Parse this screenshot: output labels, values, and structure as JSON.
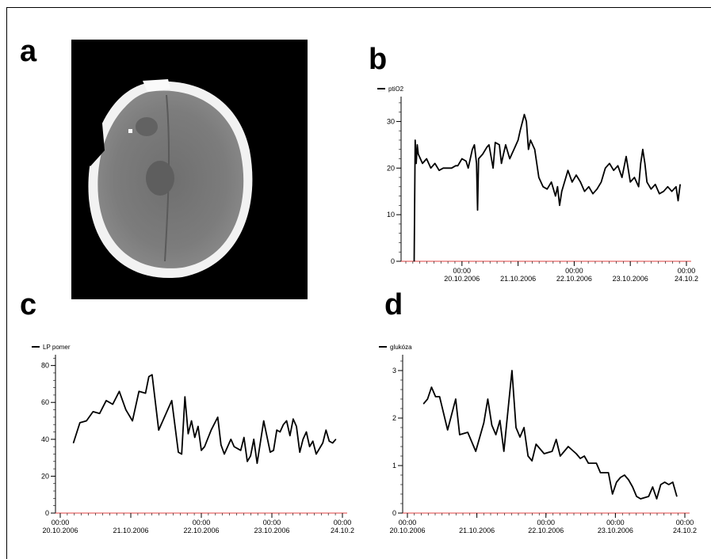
{
  "panels": [
    {
      "letter": "a"
    },
    {
      "letter": "b"
    },
    {
      "letter": "c"
    },
    {
      "letter": "d"
    }
  ],
  "colors": {
    "line": "#000000",
    "zero_line": "#e04040",
    "ct_background": "#000000",
    "skull": "#f4f4f4",
    "brain": "#767676"
  },
  "chart_data": [
    {
      "type": "line",
      "panel": "b",
      "series": [
        {
          "name": "ptiO2",
          "values": [
            [
              0.04,
              0
            ],
            [
              0.045,
              26
            ],
            [
              0.05,
              21
            ],
            [
              0.055,
              25
            ],
            [
              0.06,
              23
            ],
            [
              0.08,
              21
            ],
            [
              0.1,
              22
            ],
            [
              0.12,
              20
            ],
            [
              0.14,
              21
            ],
            [
              0.16,
              19.5
            ],
            [
              0.18,
              20
            ],
            [
              0.2,
              20
            ],
            [
              0.22,
              20
            ],
            [
              0.24,
              20.5
            ],
            [
              0.25,
              20.5
            ],
            [
              0.27,
              22
            ],
            [
              0.29,
              21.5
            ],
            [
              0.3,
              20
            ],
            [
              0.32,
              24
            ],
            [
              0.33,
              25
            ],
            [
              0.34,
              21
            ],
            [
              0.345,
              11
            ],
            [
              0.35,
              22
            ],
            [
              0.37,
              23
            ],
            [
              0.39,
              24.5
            ],
            [
              0.4,
              25
            ],
            [
              0.42,
              20
            ],
            [
              0.43,
              25.5
            ],
            [
              0.45,
              25
            ],
            [
              0.46,
              21
            ],
            [
              0.47,
              23
            ],
            [
              0.48,
              25
            ],
            [
              0.5,
              22
            ],
            [
              0.51,
              23
            ],
            [
              0.52,
              24
            ],
            [
              0.54,
              26
            ],
            [
              0.55,
              28
            ],
            [
              0.57,
              31.5
            ],
            [
              0.58,
              30
            ],
            [
              0.59,
              24
            ],
            [
              0.6,
              26
            ],
            [
              0.62,
              24
            ],
            [
              0.64,
              18
            ],
            [
              0.66,
              16
            ],
            [
              0.68,
              15.5
            ],
            [
              0.7,
              17
            ],
            [
              0.72,
              14
            ],
            [
              0.73,
              16
            ],
            [
              0.74,
              12
            ],
            [
              0.75,
              15
            ],
            [
              0.77,
              18
            ],
            [
              0.78,
              19.5
            ],
            [
              0.8,
              17
            ],
            [
              0.82,
              18.5
            ],
            [
              0.84,
              17
            ],
            [
              0.86,
              15
            ],
            [
              0.88,
              16
            ],
            [
              0.9,
              14.5
            ],
            [
              0.92,
              15.5
            ],
            [
              0.94,
              17
            ],
            [
              0.96,
              20
            ],
            [
              0.98,
              21
            ],
            [
              1.0,
              19.5
            ],
            [
              1.02,
              20.5
            ],
            [
              1.04,
              18
            ],
            [
              1.06,
              22.5
            ],
            [
              1.08,
              17
            ],
            [
              1.1,
              18
            ],
            [
              1.12,
              16
            ],
            [
              1.13,
              21
            ],
            [
              1.14,
              24
            ],
            [
              1.15,
              21
            ],
            [
              1.16,
              17
            ],
            [
              1.18,
              15.5
            ],
            [
              1.2,
              16.5
            ],
            [
              1.22,
              14.5
            ],
            [
              1.24,
              15
            ],
            [
              1.26,
              16
            ],
            [
              1.28,
              15
            ],
            [
              1.3,
              16
            ],
            [
              1.31,
              13
            ],
            [
              1.32,
              16.5
            ]
          ]
        }
      ],
      "x_ticks": [
        {
          "day": 0.5,
          "time": "00:00",
          "date": "20.10.2006"
        },
        {
          "day": 1.0,
          "time": "",
          "date": "21.10.2006"
        },
        {
          "day": 1.5,
          "time": "00:00",
          "date": "22.10.2006"
        },
        {
          "day": 2.0,
          "time": "",
          "date": "23.10.2006"
        },
        {
          "day": 2.5,
          "time": "00:00",
          "date": "24.10.2"
        }
      ],
      "y_ticks": [
        0,
        10,
        20,
        30
      ],
      "ylim": [
        0,
        35
      ],
      "legend": "top-left"
    },
    {
      "type": "line",
      "panel": "c",
      "series": [
        {
          "name": "LP pomer",
          "values": [
            [
              0.04,
              38
            ],
            [
              0.06,
              49
            ],
            [
              0.08,
              50
            ],
            [
              0.1,
              55
            ],
            [
              0.12,
              54
            ],
            [
              0.14,
              61
            ],
            [
              0.16,
              59
            ],
            [
              0.18,
              66
            ],
            [
              0.2,
              56
            ],
            [
              0.22,
              50
            ],
            [
              0.24,
              66
            ],
            [
              0.26,
              65
            ],
            [
              0.27,
              74
            ],
            [
              0.28,
              75
            ],
            [
              0.3,
              45
            ],
            [
              0.34,
              61
            ],
            [
              0.36,
              33
            ],
            [
              0.37,
              32
            ],
            [
              0.38,
              63
            ],
            [
              0.39,
              43
            ],
            [
              0.4,
              50
            ],
            [
              0.41,
              41
            ],
            [
              0.42,
              47
            ],
            [
              0.43,
              34
            ],
            [
              0.44,
              36
            ],
            [
              0.46,
              45
            ],
            [
              0.48,
              52
            ],
            [
              0.49,
              37
            ],
            [
              0.5,
              32
            ],
            [
              0.52,
              40
            ],
            [
              0.53,
              36
            ],
            [
              0.55,
              34
            ],
            [
              0.56,
              41
            ],
            [
              0.57,
              28
            ],
            [
              0.58,
              31
            ],
            [
              0.59,
              40
            ],
            [
              0.6,
              27
            ],
            [
              0.62,
              50
            ],
            [
              0.64,
              33
            ],
            [
              0.65,
              34
            ],
            [
              0.66,
              45
            ],
            [
              0.67,
              44
            ],
            [
              0.68,
              48
            ],
            [
              0.69,
              50
            ],
            [
              0.7,
              42
            ],
            [
              0.71,
              51
            ],
            [
              0.72,
              47
            ],
            [
              0.73,
              33
            ],
            [
              0.74,
              40
            ],
            [
              0.75,
              44
            ],
            [
              0.76,
              36
            ],
            [
              0.77,
              39
            ],
            [
              0.78,
              32
            ],
            [
              0.8,
              38
            ],
            [
              0.81,
              45
            ],
            [
              0.82,
              39
            ],
            [
              0.83,
              38
            ],
            [
              0.84,
              40
            ]
          ]
        }
      ],
      "x_ticks": [
        {
          "day": 0.0,
          "time": "00:00",
          "date": "20.10.2006"
        },
        {
          "day": 0.25,
          "time": "",
          "date": "21.10.2006"
        },
        {
          "day": 0.5,
          "time": "00:00",
          "date": "22.10.2006"
        },
        {
          "day": 0.75,
          "time": "00:00",
          "date": "23.10.2006"
        },
        {
          "day": 1.0,
          "time": "00:00",
          "date": "24.10.2"
        }
      ],
      "y_ticks": [
        0,
        20,
        40,
        60,
        80
      ],
      "ylim": [
        0,
        85
      ],
      "legend": "top-left"
    },
    {
      "type": "line",
      "panel": "d",
      "series": [
        {
          "name": "glukóza",
          "values": [
            [
              0.04,
              2.3
            ],
            [
              0.05,
              2.4
            ],
            [
              0.06,
              2.65
            ],
            [
              0.07,
              2.45
            ],
            [
              0.08,
              2.45
            ],
            [
              0.1,
              1.75
            ],
            [
              0.12,
              2.4
            ],
            [
              0.13,
              1.65
            ],
            [
              0.15,
              1.7
            ],
            [
              0.17,
              1.3
            ],
            [
              0.19,
              1.9
            ],
            [
              0.2,
              2.4
            ],
            [
              0.21,
              1.85
            ],
            [
              0.22,
              1.65
            ],
            [
              0.23,
              1.95
            ],
            [
              0.24,
              1.3
            ],
            [
              0.26,
              3.0
            ],
            [
              0.27,
              1.8
            ],
            [
              0.28,
              1.6
            ],
            [
              0.29,
              1.8
            ],
            [
              0.3,
              1.2
            ],
            [
              0.31,
              1.1
            ],
            [
              0.32,
              1.45
            ],
            [
              0.34,
              1.25
            ],
            [
              0.36,
              1.3
            ],
            [
              0.37,
              1.55
            ],
            [
              0.38,
              1.2
            ],
            [
              0.4,
              1.4
            ],
            [
              0.42,
              1.25
            ],
            [
              0.43,
              1.15
            ],
            [
              0.44,
              1.2
            ],
            [
              0.45,
              1.05
            ],
            [
              0.47,
              1.05
            ],
            [
              0.48,
              0.85
            ],
            [
              0.5,
              0.85
            ],
            [
              0.51,
              0.4
            ],
            [
              0.52,
              0.65
            ],
            [
              0.53,
              0.75
            ],
            [
              0.54,
              0.8
            ],
            [
              0.55,
              0.7
            ],
            [
              0.56,
              0.55
            ],
            [
              0.57,
              0.35
            ],
            [
              0.58,
              0.3
            ],
            [
              0.6,
              0.35
            ],
            [
              0.61,
              0.55
            ],
            [
              0.62,
              0.3
            ],
            [
              0.63,
              0.6
            ],
            [
              0.64,
              0.65
            ],
            [
              0.65,
              0.6
            ],
            [
              0.66,
              0.65
            ],
            [
              0.67,
              0.35
            ]
          ]
        }
      ],
      "x_ticks": [
        {
          "day": 0.0,
          "time": "00:00",
          "date": "20.10.2006"
        },
        {
          "day": 0.167,
          "time": "",
          "date": "21.10.2006"
        },
        {
          "day": 0.333,
          "time": "00:00",
          "date": "22.10.2006"
        },
        {
          "day": 0.5,
          "time": "00:00",
          "date": "23.10.2006"
        },
        {
          "day": 0.667,
          "time": "00:00",
          "date": "24.10.2"
        }
      ],
      "y_ticks": [
        0,
        1,
        2,
        3
      ],
      "ylim": [
        0,
        3.3
      ],
      "legend": "top-left"
    }
  ]
}
